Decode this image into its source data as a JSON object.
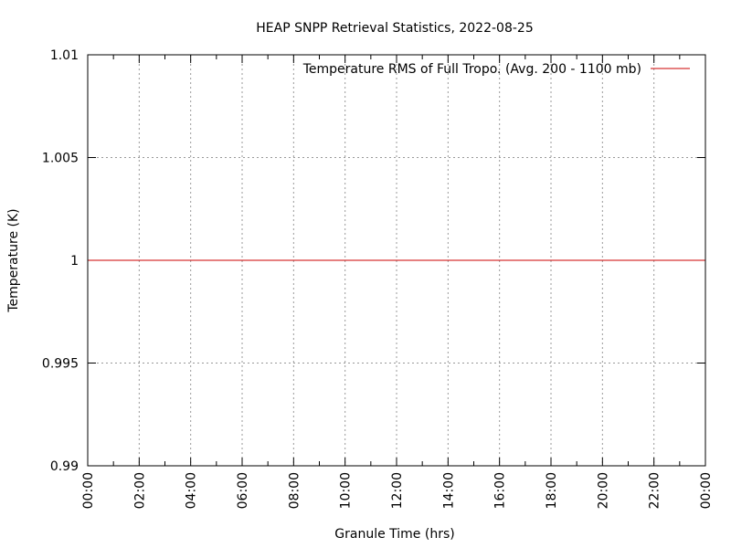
{
  "chart_data": {
    "type": "line",
    "title": "HEAP SNPP Retrieval Statistics, 2022-08-25",
    "xlabel": "Granule Time (hrs)",
    "ylabel": "Temperature (K)",
    "x_tick_labels": [
      "00:00",
      "02:00",
      "04:00",
      "06:00",
      "08:00",
      "10:00",
      "12:00",
      "14:00",
      "16:00",
      "18:00",
      "20:00",
      "22:00",
      "00:00"
    ],
    "y_ticks": [
      0.99,
      0.995,
      1,
      1.005,
      1.01
    ],
    "y_tick_labels": [
      "0.99",
      "0.995",
      "1",
      "1.005",
      "1.01"
    ],
    "xlim": [
      "00:00",
      "00:00"
    ],
    "ylim": [
      0.99,
      1.01
    ],
    "grid": true,
    "legend_position": "top-right",
    "series": [
      {
        "name": "Temperature RMS of Full Tropo. (Avg. 200 - 1100 mb)",
        "color": "#cc0000",
        "x": [
          "00:00",
          "00:00"
        ],
        "y": [
          1,
          1
        ]
      }
    ]
  }
}
